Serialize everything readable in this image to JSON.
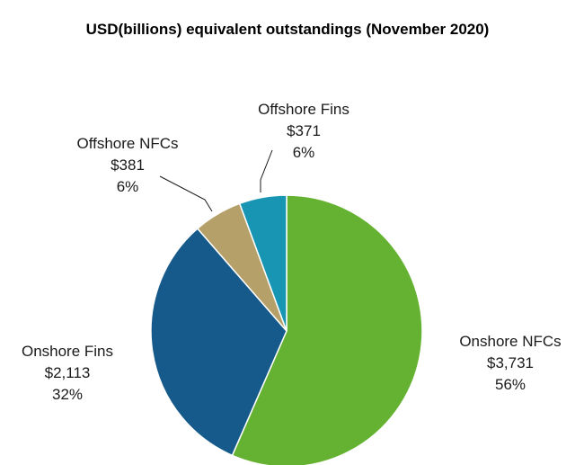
{
  "chart_data": {
    "type": "pie",
    "title": "USD(billions) equivalent outstandings (November 2020)",
    "units": "USD billions",
    "start_angle": "12 o'clock, clockwise",
    "slices": [
      {
        "label": "Onshore NFCs",
        "value": 3731,
        "value_text": "$3,731",
        "percent_text": "56%",
        "color": "#65b232"
      },
      {
        "label": "Onshore Fins",
        "value": 2113,
        "value_text": "$2,113",
        "percent_text": "32%",
        "color": "#155a8a"
      },
      {
        "label": "Offshore NFCs",
        "value": 381,
        "value_text": "$381",
        "percent_text": "6%",
        "color": "#b5a06a"
      },
      {
        "label": "Offshore Fins",
        "value": 371,
        "value_text": "$371",
        "percent_text": "6%",
        "color": "#1995b4"
      }
    ]
  }
}
